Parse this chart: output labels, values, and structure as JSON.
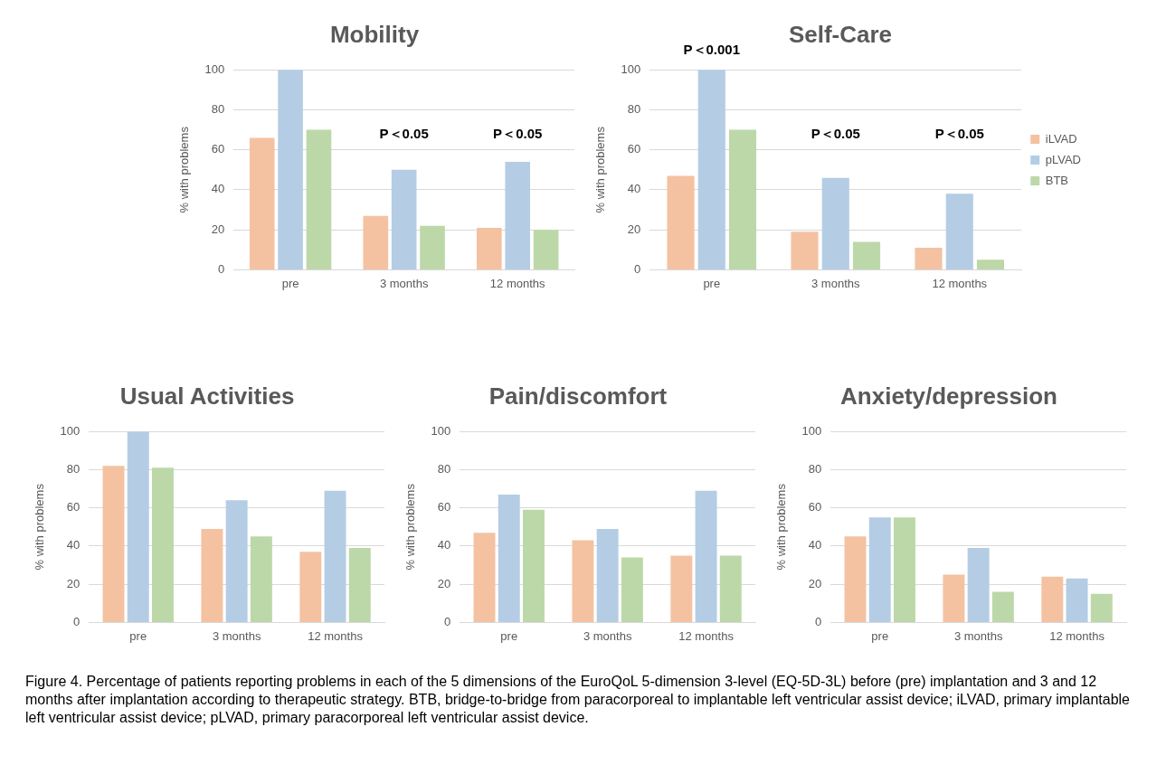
{
  "chart_data": [
    {
      "type": "bar",
      "title": "Mobility",
      "ylabel": "% with problems",
      "categories": [
        "pre",
        "3 months",
        "12 months"
      ],
      "ylim": [
        0,
        100
      ],
      "yticks": [
        0,
        20,
        40,
        60,
        80,
        100
      ],
      "grid": "y",
      "legend": false,
      "series": [
        {
          "color": "#f4c2a1",
          "values": [
            66,
            27,
            21
          ]
        },
        {
          "color": "#b4cde4",
          "values": [
            100,
            50,
            54
          ]
        },
        {
          "color": "#bcd8a8",
          "values": [
            70,
            22,
            20
          ]
        }
      ],
      "annotations": [
        "P＜0.05",
        "P＜0.05"
      ]
    },
    {
      "type": "bar",
      "title": "Self-Care",
      "ylabel": "% with problems",
      "categories": [
        "pre",
        "3 months",
        "12 months"
      ],
      "ylim": [
        0,
        100
      ],
      "yticks": [
        0,
        20,
        40,
        60,
        80,
        100
      ],
      "grid": "y",
      "legend": "right",
      "series": [
        {
          "name": "iLVAD",
          "color": "#f4c2a1",
          "values": [
            47,
            19,
            11
          ]
        },
        {
          "name": "pLVAD",
          "color": "#b4cde4",
          "values": [
            100,
            46,
            38
          ]
        },
        {
          "name": "BTB",
          "color": "#bcd8a8",
          "values": [
            70,
            14,
            5
          ]
        }
      ],
      "annotations": [
        "P＜0.001",
        "P＜0.05",
        "P＜0.05"
      ]
    },
    {
      "type": "bar",
      "title": "Usual Activities",
      "ylabel": "% with problems",
      "categories": [
        "pre",
        "3 months",
        "12 months"
      ],
      "ylim": [
        0,
        100
      ],
      "yticks": [
        0,
        20,
        40,
        60,
        80,
        100
      ],
      "grid": "y",
      "legend": false,
      "series": [
        {
          "color": "#f4c2a1",
          "values": [
            82,
            49,
            37
          ]
        },
        {
          "color": "#b4cde4",
          "values": [
            100,
            64,
            69
          ]
        },
        {
          "color": "#bcd8a8",
          "values": [
            81,
            45,
            39
          ]
        }
      ]
    },
    {
      "type": "bar",
      "title": "Pain/discomfort",
      "ylabel": "% with problems",
      "categories": [
        "pre",
        "3 months",
        "12 months"
      ],
      "ylim": [
        0,
        100
      ],
      "yticks": [
        0,
        20,
        40,
        60,
        80,
        100
      ],
      "grid": "y",
      "legend": false,
      "series": [
        {
          "color": "#f4c2a1",
          "values": [
            47,
            43,
            35
          ]
        },
        {
          "color": "#b4cde4",
          "values": [
            67,
            49,
            69
          ]
        },
        {
          "color": "#bcd8a8",
          "values": [
            59,
            34,
            35
          ]
        }
      ]
    },
    {
      "type": "bar",
      "title": "Anxiety/depression",
      "ylabel": "% with problems",
      "categories": [
        "pre",
        "3 months",
        "12 months"
      ],
      "ylim": [
        0,
        100
      ],
      "yticks": [
        0,
        20,
        40,
        60,
        80,
        100
      ],
      "grid": "y",
      "legend": false,
      "series": [
        {
          "color": "#f4c2a1",
          "values": [
            45,
            25,
            24
          ]
        },
        {
          "color": "#b4cde4",
          "values": [
            55,
            39,
            23
          ]
        },
        {
          "color": "#bcd8a8",
          "values": [
            55,
            16,
            15
          ]
        }
      ],
      "annotations": [
        "Figure 4.    Percentage of patients reporting problems in each of the 5 dimensions of the EuroQoL 5-dimension 3-level (EQ-5D-3L) before (pre) implantation and 3 and 12 months after implantation according to therapeutic strategy. BTB, bridge-to-bridge from paracorporeal to implantable left ventricular assist device; iLVAD, primary implantable left ventricular assist device; pLVAD, primary paracorporeal left ventricular assist device."
      ]
    }
  ]
}
